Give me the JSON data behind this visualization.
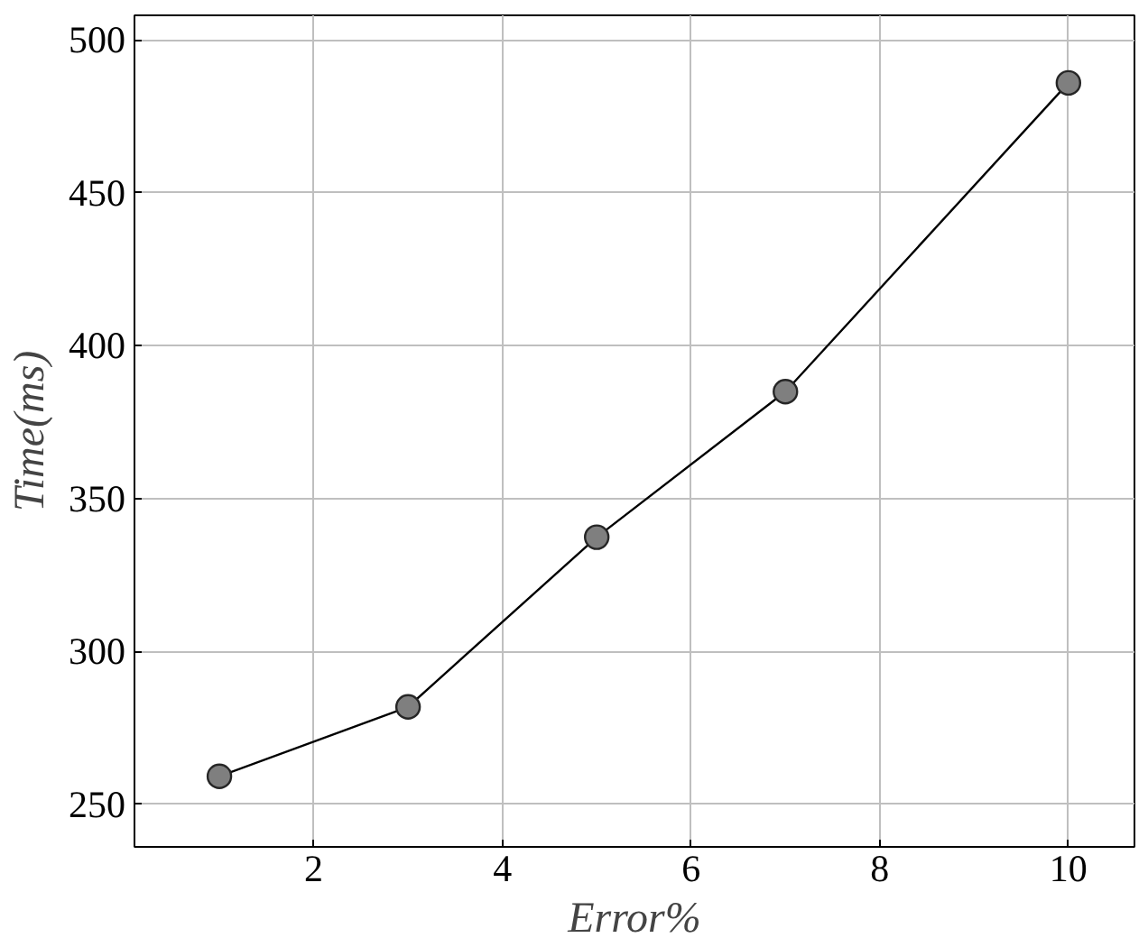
{
  "chart_data": {
    "type": "line",
    "xlabel": "Error%",
    "ylabel": "Time(ms)",
    "x": [
      1,
      3,
      5,
      7,
      10
    ],
    "series": [
      {
        "color": "#000000",
        "values": [
          259.1,
          281.8,
          337.3,
          384.9,
          485.9
        ]
      }
    ],
    "xlim": [
      0.1,
      10.7
    ],
    "ylim": [
      236,
      508
    ],
    "xticks": [
      2,
      4,
      6,
      8,
      10
    ],
    "yticks": [
      250,
      300,
      350,
      400,
      450,
      500
    ],
    "grid": true,
    "marker": "circle",
    "line_style": "solid"
  }
}
